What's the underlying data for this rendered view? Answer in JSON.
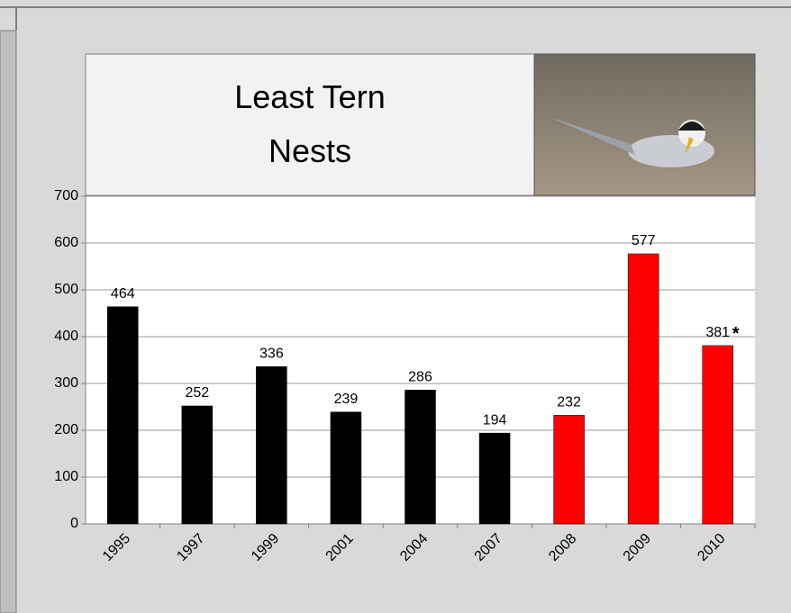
{
  "chart_data": {
    "type": "bar",
    "title": "Least Tern Nests",
    "categories": [
      "1995",
      "1997",
      "1999",
      "2001",
      "2004",
      "2007",
      "2008",
      "2009",
      "2010"
    ],
    "values": [
      464,
      252,
      336,
      239,
      286,
      194,
      232,
      577,
      381
    ],
    "colors": [
      "#000000",
      "#000000",
      "#000000",
      "#000000",
      "#000000",
      "#000000",
      "#ff0000",
      "#ff0000",
      "#ff0000"
    ],
    "annotation": "*",
    "ylim": [
      0,
      700
    ],
    "yticks": [
      0,
      100,
      200,
      300,
      400,
      500,
      600,
      700
    ],
    "grid": true
  }
}
